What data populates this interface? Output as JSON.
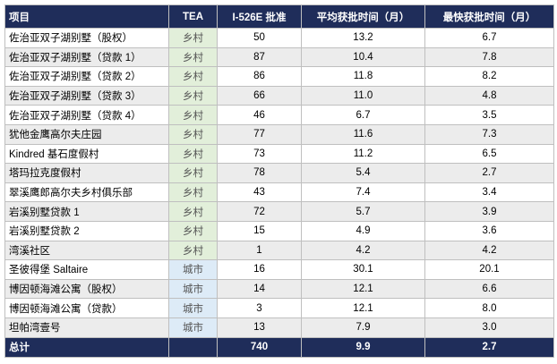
{
  "table": {
    "header": [
      "项目",
      "TEA",
      "I-526E 批准",
      "平均获批时间（月）",
      "最快获批时间（月）"
    ],
    "rows": [
      [
        "佐治亚双子湖别墅（股权）",
        "乡村",
        "50",
        "13.2",
        "6.7"
      ],
      [
        "佐治亚双子湖别墅（贷款 1）",
        "乡村",
        "87",
        "10.4",
        "7.8"
      ],
      [
        "佐治亚双子湖别墅（贷款 2）",
        "乡村",
        "86",
        "11.8",
        "8.2"
      ],
      [
        "佐治亚双子湖别墅（贷款 3）",
        "乡村",
        "66",
        "11.0",
        "4.8"
      ],
      [
        "佐治亚双子湖别墅（贷款 4）",
        "乡村",
        "46",
        "6.7",
        "3.5"
      ],
      [
        "犹他金鹰高尔夫庄园",
        "乡村",
        "77",
        "11.6",
        "7.3"
      ],
      [
        "Kindred 基石度假村",
        "乡村",
        "73",
        "11.2",
        "6.5"
      ],
      [
        "塔玛拉克度假村",
        "乡村",
        "78",
        "5.4",
        "2.7"
      ],
      [
        "翠溪鹰郎高尔夫乡村俱乐部",
        "乡村",
        "43",
        "7.4",
        "3.4"
      ],
      [
        "岩溪别墅贷款 1",
        "乡村",
        "72",
        "5.7",
        "3.9"
      ],
      [
        "岩溪别墅贷款 2",
        "乡村",
        "15",
        "4.9",
        "3.6"
      ],
      [
        "湾溪社区",
        "乡村",
        "1",
        "4.2",
        "4.2"
      ],
      [
        "圣彼得堡 Saltaire",
        "城市",
        "16",
        "30.1",
        "20.1"
      ],
      [
        "博因顿海滩公寓（股权）",
        "城市",
        "14",
        "12.1",
        "6.6"
      ],
      [
        "博因顿海滩公寓（贷款）",
        "城市",
        "3",
        "12.1",
        "8.0"
      ],
      [
        "坦帕湾壹号",
        "城市",
        "13",
        "7.9",
        "3.0"
      ]
    ],
    "total": {
      "label": "总计",
      "approvals": "740",
      "average": "9.9",
      "fastest": "2.7"
    }
  }
}
